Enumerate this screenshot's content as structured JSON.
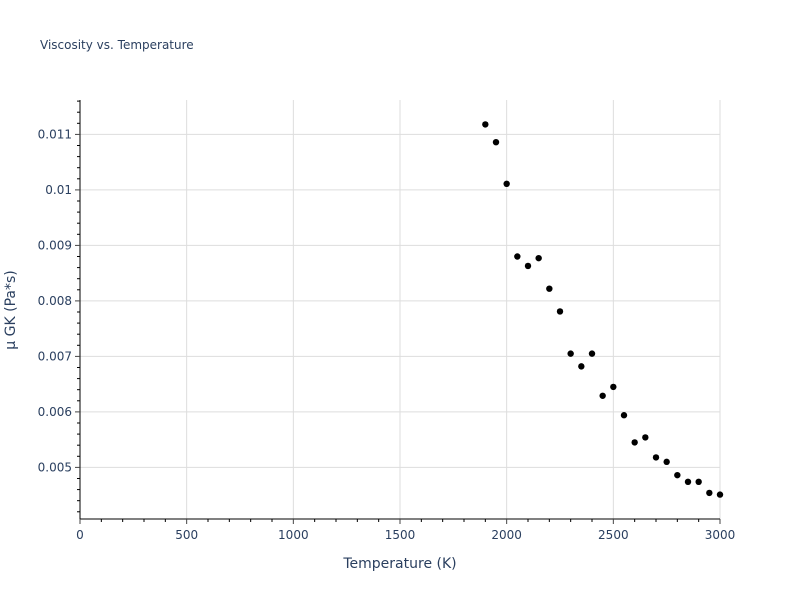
{
  "chart_data": {
    "type": "scatter",
    "title": "Viscosity vs. Temperature",
    "xlabel": "Temperature (K)",
    "ylabel": "μ GK (Pa*s)",
    "xlim": [
      0,
      3000
    ],
    "ylim": [
      0.00407,
      0.01162
    ],
    "grid": true,
    "legend": null,
    "x_ticks": [
      0,
      500,
      1000,
      1500,
      2000,
      2500,
      3000
    ],
    "x_tick_labels": [
      "0",
      "500",
      "1000",
      "1500",
      "2000",
      "2500",
      "3000"
    ],
    "y_ticks": [
      0.005,
      0.006,
      0.007,
      0.008,
      0.009,
      0.01,
      0.011
    ],
    "y_tick_labels": [
      "0.005",
      "0.006",
      "0.007",
      "0.008",
      "0.009",
      "0.01",
      "0.011"
    ],
    "marker_color": "#000000",
    "series": [
      {
        "name": "μ GK",
        "x": [
          1900,
          1950,
          2000,
          2050,
          2100,
          2150,
          2200,
          2250,
          2300,
          2350,
          2400,
          2450,
          2500,
          2550,
          2600,
          2650,
          2700,
          2750,
          2800,
          2850,
          2900,
          2950,
          3000
        ],
        "y": [
          0.01118,
          0.01086,
          0.01011,
          0.0088,
          0.00863,
          0.00877,
          0.00822,
          0.00781,
          0.00705,
          0.00682,
          0.00705,
          0.00629,
          0.00645,
          0.00594,
          0.00545,
          0.00554,
          0.00518,
          0.0051,
          0.00486,
          0.00474,
          0.00474,
          0.00454,
          0.00451
        ]
      }
    ]
  }
}
